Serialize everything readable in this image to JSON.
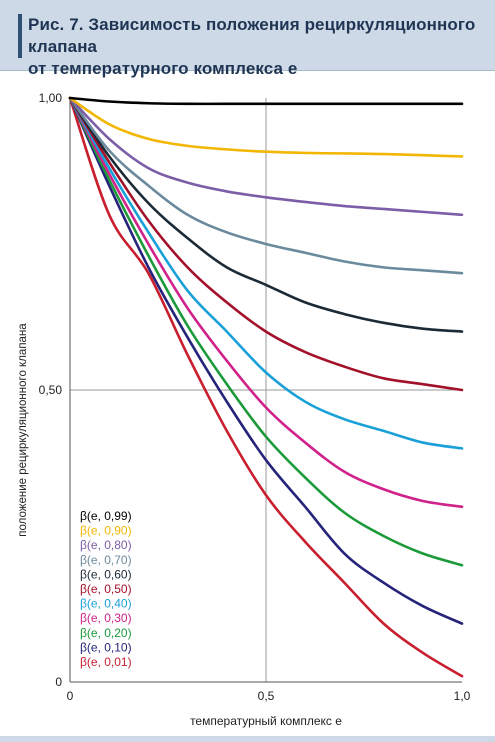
{
  "figure": {
    "title_line1": "Рис. 7. Зависимость положения рециркуляционного клапана",
    "title_line2": "от температурного комплекса e"
  },
  "chart_data": {
    "type": "line",
    "xlabel": "температурный комплекс e",
    "ylabel": "положение рециркуляционного клапана",
    "xlim": [
      0,
      1.0
    ],
    "ylim": [
      0,
      1.0
    ],
    "x_ticks": [
      {
        "value": 0,
        "label": "0"
      },
      {
        "value": 0.5,
        "label": "0,5"
      },
      {
        "value": 1.0,
        "label": "1,0"
      }
    ],
    "y_ticks": [
      {
        "value": 0,
        "label": "0"
      },
      {
        "value": 0.5,
        "label": "0,50"
      },
      {
        "value": 1.0,
        "label": "1,00"
      }
    ],
    "grid": "x=0.5 and y=0.5 reference lines",
    "legend_position": "bottom-left",
    "x": [
      0,
      0.1,
      0.2,
      0.3,
      0.4,
      0.5,
      0.6,
      0.7,
      0.8,
      0.9,
      1.0
    ],
    "series": [
      {
        "name": "β(e, 0,99)",
        "color": "#000000",
        "values": [
          1.0,
          0.994,
          0.991,
          0.99,
          0.99,
          0.99,
          0.99,
          0.99,
          0.99,
          0.99,
          0.99
        ]
      },
      {
        "name": "β(e, 0,90)",
        "color": "#f2b705",
        "values": [
          1.0,
          0.955,
          0.93,
          0.918,
          0.912,
          0.908,
          0.906,
          0.905,
          0.904,
          0.902,
          0.9
        ]
      },
      {
        "name": "β(e, 0,80)",
        "color": "#7b5ea7",
        "values": [
          1.0,
          0.93,
          0.88,
          0.855,
          0.84,
          0.83,
          0.822,
          0.815,
          0.81,
          0.805,
          0.8
        ]
      },
      {
        "name": "β(e, 0,70)",
        "color": "#6b8a9e",
        "values": [
          1.0,
          0.91,
          0.85,
          0.8,
          0.77,
          0.75,
          0.735,
          0.72,
          0.71,
          0.705,
          0.7
        ]
      },
      {
        "name": "β(e, 0,60)",
        "color": "#1c2a36",
        "values": [
          1.0,
          0.9,
          0.82,
          0.76,
          0.71,
          0.68,
          0.65,
          0.63,
          0.615,
          0.605,
          0.6
        ]
      },
      {
        "name": "β(e, 0,50)",
        "color": "#a3102a",
        "values": [
          1.0,
          0.89,
          0.79,
          0.71,
          0.65,
          0.6,
          0.565,
          0.54,
          0.52,
          0.51,
          0.5
        ]
      },
      {
        "name": "β(e, 0,40)",
        "color": "#1aa0d8",
        "values": [
          1.0,
          0.88,
          0.77,
          0.67,
          0.6,
          0.53,
          0.48,
          0.45,
          0.43,
          0.41,
          0.4
        ]
      },
      {
        "name": "β(e, 0,30)",
        "color": "#d0228a",
        "values": [
          1.0,
          0.87,
          0.75,
          0.64,
          0.55,
          0.47,
          0.41,
          0.36,
          0.33,
          0.31,
          0.3
        ]
      },
      {
        "name": "β(e, 0,20)",
        "color": "#1c9a3a",
        "values": [
          1.0,
          0.86,
          0.73,
          0.61,
          0.51,
          0.42,
          0.35,
          0.29,
          0.25,
          0.22,
          0.2
        ]
      },
      {
        "name": "β(e, 0,10)",
        "color": "#25237a",
        "values": [
          1.0,
          0.85,
          0.71,
          0.59,
          0.48,
          0.38,
          0.3,
          0.22,
          0.17,
          0.13,
          0.1
        ]
      },
      {
        "name": "β(e, 0,01)",
        "color": "#c81e2e",
        "values": [
          1.0,
          0.8,
          0.7,
          0.56,
          0.43,
          0.32,
          0.24,
          0.17,
          0.1,
          0.05,
          0.01
        ]
      }
    ]
  }
}
